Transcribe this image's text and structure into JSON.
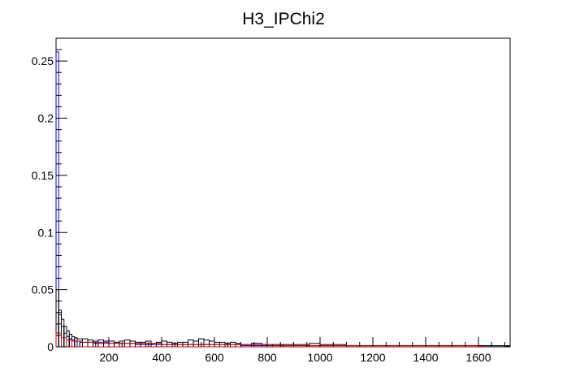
{
  "chart_data": {
    "type": "histogram",
    "title": "H3_IPChi2",
    "xlabel": "",
    "ylabel": "",
    "xlim": [
      0,
      1720
    ],
    "ylim": [
      0,
      0.27
    ],
    "x_ticks": [
      200,
      400,
      600,
      800,
      1000,
      1200,
      1400,
      1600
    ],
    "x_tick_labels": [
      "200",
      "400",
      "600",
      "800",
      "1000",
      "1200",
      "1400",
      "1600"
    ],
    "y_ticks": [
      0,
      0.05,
      0.1,
      0.15,
      0.2,
      0.25
    ],
    "y_tick_labels": [
      "0",
      "0.05",
      "0.1",
      "0.15",
      "0.2",
      "0.25"
    ],
    "bin_width": 10,
    "series": [
      {
        "name": "blue",
        "color": "#0000cc",
        "bin_lows": [
          0,
          10,
          20,
          30,
          40,
          50,
          60,
          70,
          80,
          90,
          100,
          120,
          140,
          160,
          180,
          200,
          220,
          240,
          260,
          280,
          300,
          340,
          380,
          420,
          460,
          500,
          540,
          580,
          620,
          660,
          700,
          800,
          900,
          1000,
          1100,
          1200,
          1300,
          1400,
          1500,
          1600,
          1700
        ],
        "values": [
          0.258,
          0.028,
          0.018,
          0.012,
          0.009,
          0.007,
          0.006,
          0.005,
          0.005,
          0.004,
          0.004,
          0.004,
          0.003,
          0.003,
          0.003,
          0.003,
          0.003,
          0.003,
          0.003,
          0.003,
          0.002,
          0.002,
          0.002,
          0.002,
          0.002,
          0.002,
          0.002,
          0.002,
          0.002,
          0.002,
          0.001,
          0.001,
          0.001,
          0.001,
          0.001,
          0.001,
          0.001,
          0.001,
          0.001,
          0.001,
          0.0005
        ]
      },
      {
        "name": "black",
        "color": "#000000",
        "bin_lows": [
          0,
          10,
          20,
          30,
          40,
          50,
          60,
          70,
          80,
          100,
          120,
          140,
          160,
          180,
          200,
          220,
          240,
          260,
          280,
          300,
          320,
          340,
          360,
          380,
          400,
          420,
          440,
          460,
          480,
          500,
          520,
          540,
          560,
          580,
          600,
          620,
          640,
          660,
          680,
          700,
          740,
          780,
          820,
          860,
          900,
          960,
          1000,
          1100,
          1200,
          1300,
          1400,
          1500,
          1600,
          1700
        ],
        "values": [
          0.05,
          0.032,
          0.024,
          0.018,
          0.014,
          0.011,
          0.009,
          0.008,
          0.007,
          0.007,
          0.006,
          0.005,
          0.006,
          0.005,
          0.005,
          0.004,
          0.005,
          0.006,
          0.005,
          0.004,
          0.004,
          0.005,
          0.003,
          0.004,
          0.005,
          0.004,
          0.003,
          0.004,
          0.004,
          0.006,
          0.005,
          0.007,
          0.006,
          0.005,
          0.004,
          0.004,
          0.003,
          0.004,
          0.003,
          0.002,
          0.003,
          0.002,
          0.002,
          0.002,
          0.002,
          0.003,
          0.002,
          0.001,
          0.001,
          0.001,
          0.001,
          0.001,
          0.001,
          0.001
        ]
      },
      {
        "name": "red",
        "color": "#cc0000",
        "bin_lows": [
          0,
          20,
          40,
          60,
          100,
          200,
          300,
          400,
          500,
          600,
          700,
          800,
          900,
          1000,
          1100,
          1200,
          1400,
          1600
        ],
        "values": [
          0.012,
          0.008,
          0.006,
          0.005,
          0.004,
          0.003,
          0.003,
          0.002,
          0.002,
          0.002,
          0.002,
          0.001,
          0.001,
          0.001,
          0.001,
          0.001,
          0.001,
          0.0005
        ]
      }
    ]
  }
}
